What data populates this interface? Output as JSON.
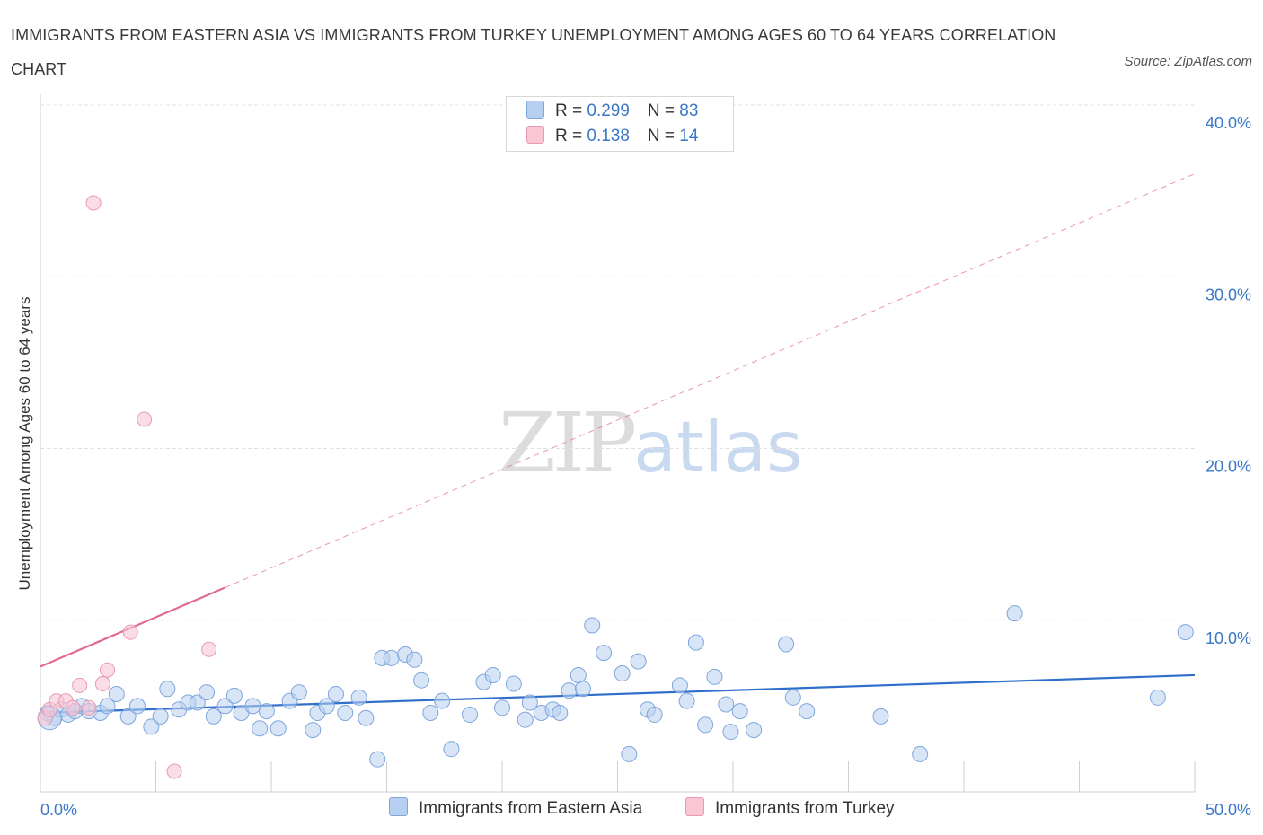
{
  "header": {
    "title": "IMMIGRANTS FROM EASTERN ASIA VS IMMIGRANTS FROM TURKEY UNEMPLOYMENT AMONG AGES 60 TO 64 YEARS CORRELATION CHART",
    "source": "Source: ZipAtlas.com"
  },
  "watermark": {
    "zip": "ZIP",
    "atlas": "atlas"
  },
  "legend": {
    "rows": [
      {
        "r_label": "R = ",
        "r_value": "0.299",
        "n_label": "N = ",
        "n_value": "83"
      },
      {
        "r_label": "R = ",
        "r_value": "0.138",
        "n_label": "N = ",
        "n_value": "14"
      }
    ]
  },
  "colors": {
    "blue_fill": "#b7d0f1",
    "blue_stroke": "#7fa6dc",
    "blue_line": "#2f6fca",
    "pink_fill": "#f9c6d5",
    "pink_stroke": "#e89ab2",
    "pink_line": "#e06b93",
    "value_text": "#3a77c8",
    "grid": "#dde1e6"
  },
  "chart_data": {
    "type": "scatter",
    "title": "IMMIGRANTS FROM EASTERN ASIA VS IMMIGRANTS FROM TURKEY UNEMPLOYMENT AMONG AGES 60 TO 64 YEARS CORRELATION CHART",
    "xlabel": "",
    "ylabel": "Unemployment Among Ages 60 to 64 years",
    "xlim": [
      0,
      50
    ],
    "ylim": [
      0,
      40
    ],
    "x_tick_labels": [
      {
        "value": 0,
        "label": "0.0%"
      },
      {
        "value": 50,
        "label": "50.0%"
      }
    ],
    "y_tick_labels": [
      {
        "value": 10,
        "label": "10.0%"
      },
      {
        "value": 20,
        "label": "20.0%"
      },
      {
        "value": 30,
        "label": "30.0%"
      },
      {
        "value": 40,
        "label": "40.0%"
      }
    ],
    "y_gridlines": [
      10,
      20,
      30,
      40
    ],
    "x_minor_ticks": [
      5,
      10,
      15,
      20,
      25,
      30,
      35,
      40,
      45,
      50
    ],
    "grid": true,
    "legend_position": "top-center",
    "series": [
      {
        "name": "Immigrants from Eastern Asia",
        "color": "#b7d0f1",
        "points": [
          [
            0.3,
            4.6
          ],
          [
            0.6,
            4.3
          ],
          [
            0.9,
            4.8
          ],
          [
            1.2,
            4.5
          ],
          [
            1.5,
            4.7
          ],
          [
            1.8,
            5.0
          ],
          [
            2.1,
            4.7
          ],
          [
            2.6,
            4.6
          ],
          [
            2.9,
            5.0
          ],
          [
            3.3,
            5.7
          ],
          [
            3.8,
            4.4
          ],
          [
            4.2,
            5.0
          ],
          [
            4.8,
            3.8
          ],
          [
            5.2,
            4.4
          ],
          [
            5.5,
            6.0
          ],
          [
            6.0,
            4.8
          ],
          [
            6.4,
            5.2
          ],
          [
            6.8,
            5.2
          ],
          [
            7.2,
            5.8
          ],
          [
            7.5,
            4.4
          ],
          [
            8.0,
            5.0
          ],
          [
            8.4,
            5.6
          ],
          [
            8.7,
            4.6
          ],
          [
            9.2,
            5.0
          ],
          [
            9.5,
            3.7
          ],
          [
            9.8,
            4.7
          ],
          [
            10.3,
            3.7
          ],
          [
            10.8,
            5.3
          ],
          [
            11.2,
            5.8
          ],
          [
            11.8,
            3.6
          ],
          [
            12.0,
            4.6
          ],
          [
            12.4,
            5.0
          ],
          [
            12.8,
            5.7
          ],
          [
            13.2,
            4.6
          ],
          [
            13.8,
            5.5
          ],
          [
            14.1,
            4.3
          ],
          [
            14.6,
            1.9
          ],
          [
            14.8,
            7.8
          ],
          [
            15.2,
            7.8
          ],
          [
            15.8,
            8.0
          ],
          [
            16.2,
            7.7
          ],
          [
            16.5,
            6.5
          ],
          [
            16.9,
            4.6
          ],
          [
            17.4,
            5.3
          ],
          [
            17.8,
            2.5
          ],
          [
            18.6,
            4.5
          ],
          [
            19.2,
            6.4
          ],
          [
            19.6,
            6.8
          ],
          [
            20.0,
            4.9
          ],
          [
            20.5,
            6.3
          ],
          [
            21.0,
            4.2
          ],
          [
            21.2,
            5.2
          ],
          [
            21.7,
            4.6
          ],
          [
            22.2,
            4.8
          ],
          [
            22.5,
            4.6
          ],
          [
            22.9,
            5.9
          ],
          [
            23.3,
            6.8
          ],
          [
            23.5,
            6.0
          ],
          [
            23.9,
            9.7
          ],
          [
            24.4,
            8.1
          ],
          [
            25.2,
            6.9
          ],
          [
            25.5,
            2.2
          ],
          [
            25.9,
            7.6
          ],
          [
            26.3,
            4.8
          ],
          [
            26.6,
            4.5
          ],
          [
            27.7,
            6.2
          ],
          [
            28.0,
            5.3
          ],
          [
            28.4,
            8.7
          ],
          [
            28.8,
            3.9
          ],
          [
            29.2,
            6.7
          ],
          [
            29.7,
            5.1
          ],
          [
            29.9,
            3.5
          ],
          [
            30.3,
            4.7
          ],
          [
            30.9,
            3.6
          ],
          [
            32.3,
            8.6
          ],
          [
            32.6,
            5.5
          ],
          [
            33.2,
            4.7
          ],
          [
            36.4,
            4.4
          ],
          [
            38.1,
            2.2
          ],
          [
            42.2,
            10.4
          ],
          [
            48.4,
            5.5
          ],
          [
            49.6,
            9.3
          ],
          [
            0.4,
            4.3
          ]
        ],
        "trend": {
          "x": [
            0,
            50
          ],
          "y": [
            4.6,
            6.8
          ],
          "style": "solid"
        }
      },
      {
        "name": "Immigrants from Turkey",
        "color": "#f9c6d5",
        "points": [
          [
            0.2,
            4.3
          ],
          [
            0.4,
            4.8
          ],
          [
            0.7,
            5.3
          ],
          [
            1.1,
            5.3
          ],
          [
            1.4,
            4.9
          ],
          [
            1.7,
            6.2
          ],
          [
            2.1,
            4.9
          ],
          [
            2.7,
            6.3
          ],
          [
            2.9,
            7.1
          ],
          [
            3.9,
            9.3
          ],
          [
            4.5,
            21.7
          ],
          [
            5.8,
            1.2
          ],
          [
            7.3,
            8.3
          ],
          [
            2.3,
            34.3
          ]
        ],
        "trend": {
          "x": [
            0,
            8
          ],
          "y": [
            7.3,
            11.9
          ],
          "style": "solid",
          "extension": {
            "x": [
              8,
              50
            ],
            "y": [
              11.9,
              36.0
            ],
            "style": "dashed"
          }
        }
      }
    ]
  }
}
